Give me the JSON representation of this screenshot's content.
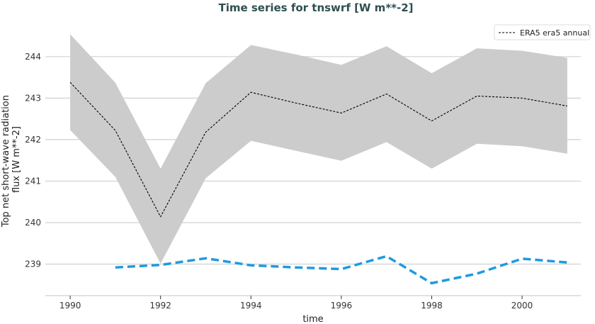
{
  "chart_data": {
    "type": "line",
    "title": "Time series for tnswrf [W m**-2]",
    "xlabel": "time",
    "ylabel": "Top net short-wave radiation flux [W m**-2]",
    "ylabel_lines": [
      "Top net short-wave radiation",
      "flux [W m**-2]"
    ],
    "xlim": [
      1989.45,
      2001.3
    ],
    "ylim": [
      238.24,
      244.8
    ],
    "xticks": [
      1990,
      1992,
      1994,
      1996,
      1998,
      2000
    ],
    "yticks": [
      239,
      240,
      241,
      242,
      243,
      244
    ],
    "grid": "horizontal",
    "legend_position": "top-right",
    "x": [
      1990,
      1991,
      1992,
      1993,
      1994,
      1995,
      1996,
      1997,
      1998,
      1999,
      2000,
      2001
    ],
    "series": [
      {
        "name": "ERA5 era5 annual",
        "color": "#000000",
        "style": "dashed-thin",
        "values": [
          243.38,
          242.22,
          240.14,
          242.18,
          243.14,
          242.88,
          242.64,
          243.1,
          242.45,
          243.05,
          243.0,
          242.81
        ],
        "band_upper": [
          244.54,
          243.37,
          241.3,
          243.36,
          244.28,
          244.05,
          243.8,
          244.25,
          243.6,
          244.2,
          244.14,
          243.97
        ],
        "band_lower": [
          242.23,
          241.1,
          239.01,
          241.07,
          241.97,
          241.73,
          241.49,
          241.94,
          241.3,
          241.9,
          241.84,
          241.66
        ],
        "band_color": "#cccccc"
      },
      {
        "color": "#1e9ae0",
        "style": "dashed-thick",
        "x": [
          1991,
          1992,
          1993,
          1994,
          1995,
          1996,
          1997,
          1998,
          1999,
          2000,
          2001
        ],
        "values": [
          238.92,
          238.98,
          239.14,
          238.97,
          238.92,
          238.88,
          239.19,
          238.54,
          238.77,
          239.13,
          239.04
        ]
      }
    ]
  }
}
